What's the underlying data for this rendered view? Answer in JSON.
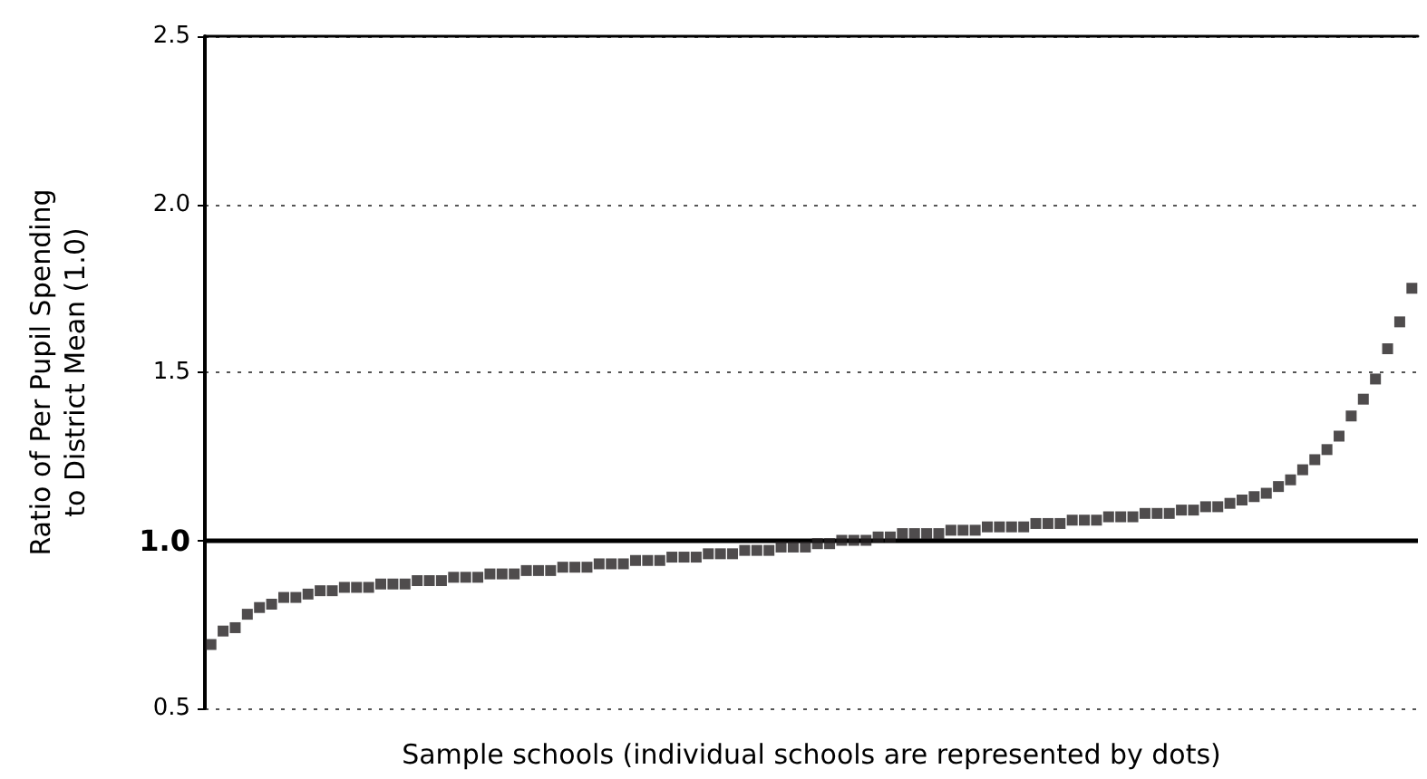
{
  "chart_data": {
    "type": "scatter",
    "xlabel": "Sample schools (individual schools are represented by dots)",
    "ylabel": "Ratio of Per Pupil Spending\nto District Mean (1.0)",
    "categories": [
      null,
      null,
      null,
      null,
      null,
      null,
      null,
      null,
      null,
      null,
      null,
      null,
      null,
      null,
      null,
      null,
      null,
      null,
      null,
      null,
      null,
      null,
      null,
      null,
      null,
      null,
      null,
      null,
      null,
      null,
      null,
      null,
      null,
      null,
      null,
      null,
      null,
      null,
      null,
      null,
      null,
      null,
      null,
      null,
      null,
      null,
      null,
      null,
      null,
      null,
      null,
      null,
      null,
      null,
      null,
      null,
      null,
      null,
      null,
      null,
      null,
      null,
      null,
      null,
      null,
      null,
      null,
      null,
      null,
      null,
      null,
      null,
      null,
      null,
      null,
      null,
      null,
      null,
      null,
      null,
      null,
      null,
      null,
      null,
      null,
      null,
      null,
      null,
      null,
      null,
      null,
      null,
      null,
      null,
      null,
      null,
      null,
      null,
      null,
      null
    ],
    "series": [
      {
        "color": "#231f20",
        "values": [
          0.69,
          0.73,
          0.74,
          0.78,
          0.8,
          0.81,
          0.83,
          0.83,
          0.84,
          0.85,
          0.85,
          0.86,
          0.86,
          0.86,
          0.87,
          0.87,
          0.87,
          0.88,
          0.88,
          0.88,
          0.89,
          0.89,
          0.89,
          0.9,
          0.9,
          0.9,
          0.91,
          0.91,
          0.91,
          0.92,
          0.92,
          0.92,
          0.93,
          0.93,
          0.93,
          0.94,
          0.94,
          0.94,
          0.95,
          0.95,
          0.95,
          0.96,
          0.96,
          0.96,
          0.97,
          0.97,
          0.97,
          0.98,
          0.98,
          0.98,
          0.99,
          0.99,
          1.0,
          1.0,
          1.0,
          1.01,
          1.01,
          1.02,
          1.02,
          1.02,
          1.02,
          1.03,
          1.03,
          1.03,
          1.04,
          1.04,
          1.04,
          1.04,
          1.05,
          1.05,
          1.05,
          1.06,
          1.06,
          1.06,
          1.07,
          1.07,
          1.07,
          1.08,
          1.08,
          1.08,
          1.09,
          1.09,
          1.1,
          1.1,
          1.11,
          1.12,
          1.13,
          1.14,
          1.16,
          1.18,
          1.21,
          1.24,
          1.27,
          1.31,
          1.37,
          1.42,
          1.48,
          1.57,
          1.65,
          1.75
        ]
      }
    ],
    "ylim": [
      0.5,
      2.5
    ],
    "yticks": [
      {
        "value": 0.5,
        "label": "0.5"
      },
      {
        "value": 1,
        "label": "1.0"
      },
      {
        "value": 1.5,
        "label": "1.5"
      },
      {
        "value": 2,
        "label": "2.0"
      },
      {
        "value": 2.5,
        "label": "2.5"
      }
    ],
    "ref_lines": [
      {
        "axis": "y",
        "value": 1,
        "color": "#000000",
        "line_style": "solid"
      }
    ],
    "grid": "y",
    "line_style": "dotted",
    "marker": "square"
  }
}
